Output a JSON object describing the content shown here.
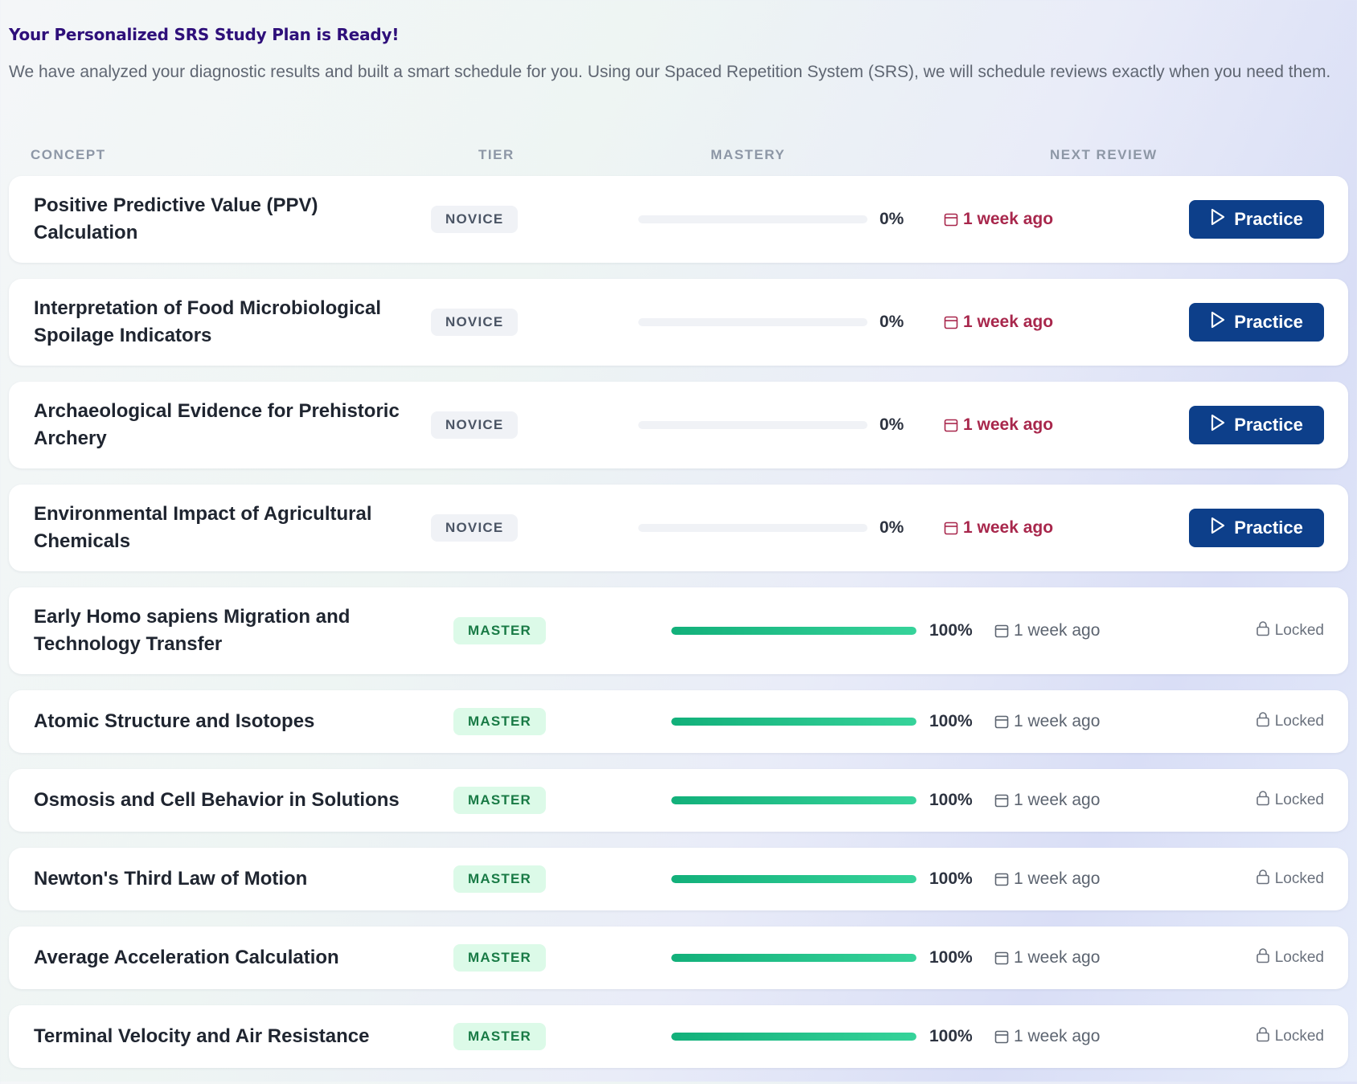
{
  "header": {
    "title": "Your Personalized SRS Study Plan is Ready!",
    "description": "We have analyzed your diagnostic results and built a smart schedule for you. Using our Spaced Repetition System (SRS), we will schedule reviews exactly when you need them."
  },
  "table": {
    "columns": {
      "concept": "CONCEPT",
      "tier": "TIER",
      "mastery": "MASTERY",
      "next_review": "NEXT REVIEW"
    },
    "rows": [
      {
        "concept": "Positive Predictive Value (PPV) Calculation",
        "tier": "NOVICE",
        "mastery": "0%",
        "mastery_value": 0,
        "next_review": "1 week ago",
        "action": "Practice"
      },
      {
        "concept": "Interpretation of Food Microbiological Spoilage Indicators",
        "tier": "NOVICE",
        "mastery": "0%",
        "mastery_value": 0,
        "next_review": "1 week ago",
        "action": "Practice"
      },
      {
        "concept": "Archaeological Evidence for Prehistoric Archery",
        "tier": "NOVICE",
        "mastery": "0%",
        "mastery_value": 0,
        "next_review": "1 week ago",
        "action": "Practice"
      },
      {
        "concept": "Environmental Impact of Agricultural Chemicals",
        "tier": "NOVICE",
        "mastery": "0%",
        "mastery_value": 0,
        "next_review": "1 week ago",
        "action": "Practice"
      },
      {
        "concept": "Early Homo sapiens Migration and Technology Transfer",
        "tier": "MASTER",
        "mastery": "100%",
        "mastery_value": 100,
        "next_review": "1 week ago",
        "action": "Locked"
      },
      {
        "concept": "Atomic Structure and Isotopes",
        "tier": "MASTER",
        "mastery": "100%",
        "mastery_value": 100,
        "next_review": "1 week ago",
        "action": "Locked"
      },
      {
        "concept": "Osmosis and Cell Behavior in Solutions",
        "tier": "MASTER",
        "mastery": "100%",
        "mastery_value": 100,
        "next_review": "1 week ago",
        "action": "Locked"
      },
      {
        "concept": "Newton's Third Law of Motion",
        "tier": "MASTER",
        "mastery": "100%",
        "mastery_value": 100,
        "next_review": "1 week ago",
        "action": "Locked"
      },
      {
        "concept": "Average Acceleration Calculation",
        "tier": "MASTER",
        "mastery": "100%",
        "mastery_value": 100,
        "next_review": "1 week ago",
        "action": "Locked"
      },
      {
        "concept": "Terminal Velocity and Air Resistance",
        "tier": "MASTER",
        "mastery": "100%",
        "mastery_value": 100,
        "next_review": "1 week ago",
        "action": "Locked"
      }
    ]
  },
  "icons": {
    "calendar": "calendar-icon",
    "play": "play-icon",
    "lock": "lock-icon"
  },
  "colors": {
    "title": "#2e0f7a",
    "overdue": "#a8274c",
    "practice_button": "#0d3f8a",
    "progress_fill": "#12b07a",
    "master_badge_bg": "#dcfae8",
    "master_badge_text": "#187a45"
  }
}
